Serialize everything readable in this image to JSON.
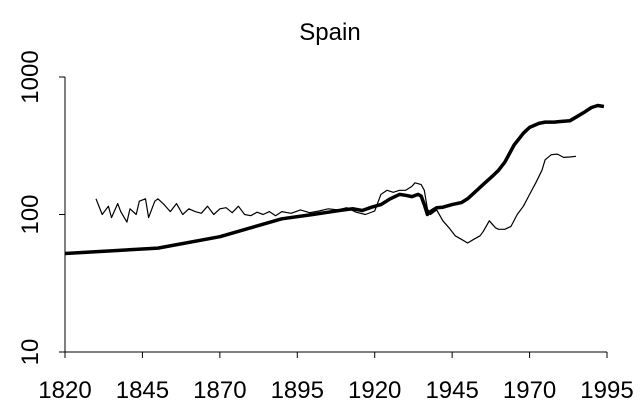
{
  "chart_data": {
    "type": "line",
    "title": "Spain",
    "series": [
      {
        "color": "#000000",
        "width": 3.5,
        "x": [
          1820,
          1850,
          1870,
          1890,
          1900,
          1905,
          1910,
          1913,
          1916,
          1919,
          1922,
          1925,
          1928,
          1930,
          1932,
          1934,
          1935,
          1936,
          1937,
          1938,
          1940,
          1942,
          1945,
          1948,
          1950,
          1953,
          1955,
          1958,
          1960,
          1962,
          1965,
          1968,
          1970,
          1973,
          1975,
          1978,
          1980,
          1983,
          1985,
          1988,
          1990,
          1992,
          1994
        ],
        "values": [
          52,
          57,
          69,
          93,
          100,
          104,
          108,
          110,
          107,
          113,
          118,
          130,
          140,
          138,
          135,
          140,
          136,
          118,
          100,
          105,
          112,
          113,
          118,
          122,
          130,
          150,
          165,
          190,
          210,
          240,
          320,
          390,
          430,
          460,
          470,
          470,
          475,
          480,
          510,
          560,
          600,
          620,
          610
        ]
      },
      {
        "color": "#000000",
        "width": 1.2,
        "x": [
          1830,
          1832,
          1834,
          1835,
          1837,
          1838,
          1840,
          1841,
          1843,
          1844,
          1846,
          1847,
          1849,
          1850,
          1852,
          1854,
          1856,
          1858,
          1860,
          1862,
          1864,
          1866,
          1868,
          1870,
          1872,
          1874,
          1876,
          1878,
          1880,
          1882,
          1884,
          1886,
          1888,
          1890,
          1893,
          1896,
          1899,
          1902,
          1905,
          1908,
          1911,
          1914,
          1917,
          1920,
          1922,
          1924,
          1926,
          1928,
          1930,
          1932,
          1933,
          1935,
          1936,
          1937,
          1938,
          1940,
          1942,
          1944,
          1946,
          1948,
          1950,
          1952,
          1954,
          1955,
          1957,
          1959,
          1960,
          1962,
          1964,
          1966,
          1968,
          1970,
          1972,
          1974,
          1975,
          1977,
          1979,
          1981,
          1983,
          1985
        ],
        "values": [
          130,
          100,
          115,
          95,
          120,
          105,
          88,
          110,
          100,
          125,
          130,
          95,
          125,
          130,
          118,
          105,
          120,
          100,
          110,
          105,
          102,
          115,
          100,
          110,
          112,
          103,
          115,
          100,
          98,
          104,
          100,
          105,
          98,
          105,
          102,
          108,
          103,
          106,
          110,
          108,
          112,
          104,
          100,
          106,
          140,
          150,
          145,
          150,
          150,
          160,
          170,
          165,
          150,
          110,
          100,
          108,
          90,
          80,
          70,
          66,
          62,
          66,
          70,
          75,
          90,
          80,
          78,
          78,
          82,
          100,
          115,
          140,
          170,
          210,
          250,
          272,
          275,
          260,
          262,
          265
        ]
      }
    ],
    "xlim": [
      1820,
      1995
    ],
    "xticks": [
      1820,
      1845,
      1870,
      1895,
      1920,
      1945,
      1970,
      1995
    ],
    "ylim": [
      10,
      1000
    ],
    "yticks": [
      10,
      100,
      1000
    ],
    "log_y": true
  }
}
